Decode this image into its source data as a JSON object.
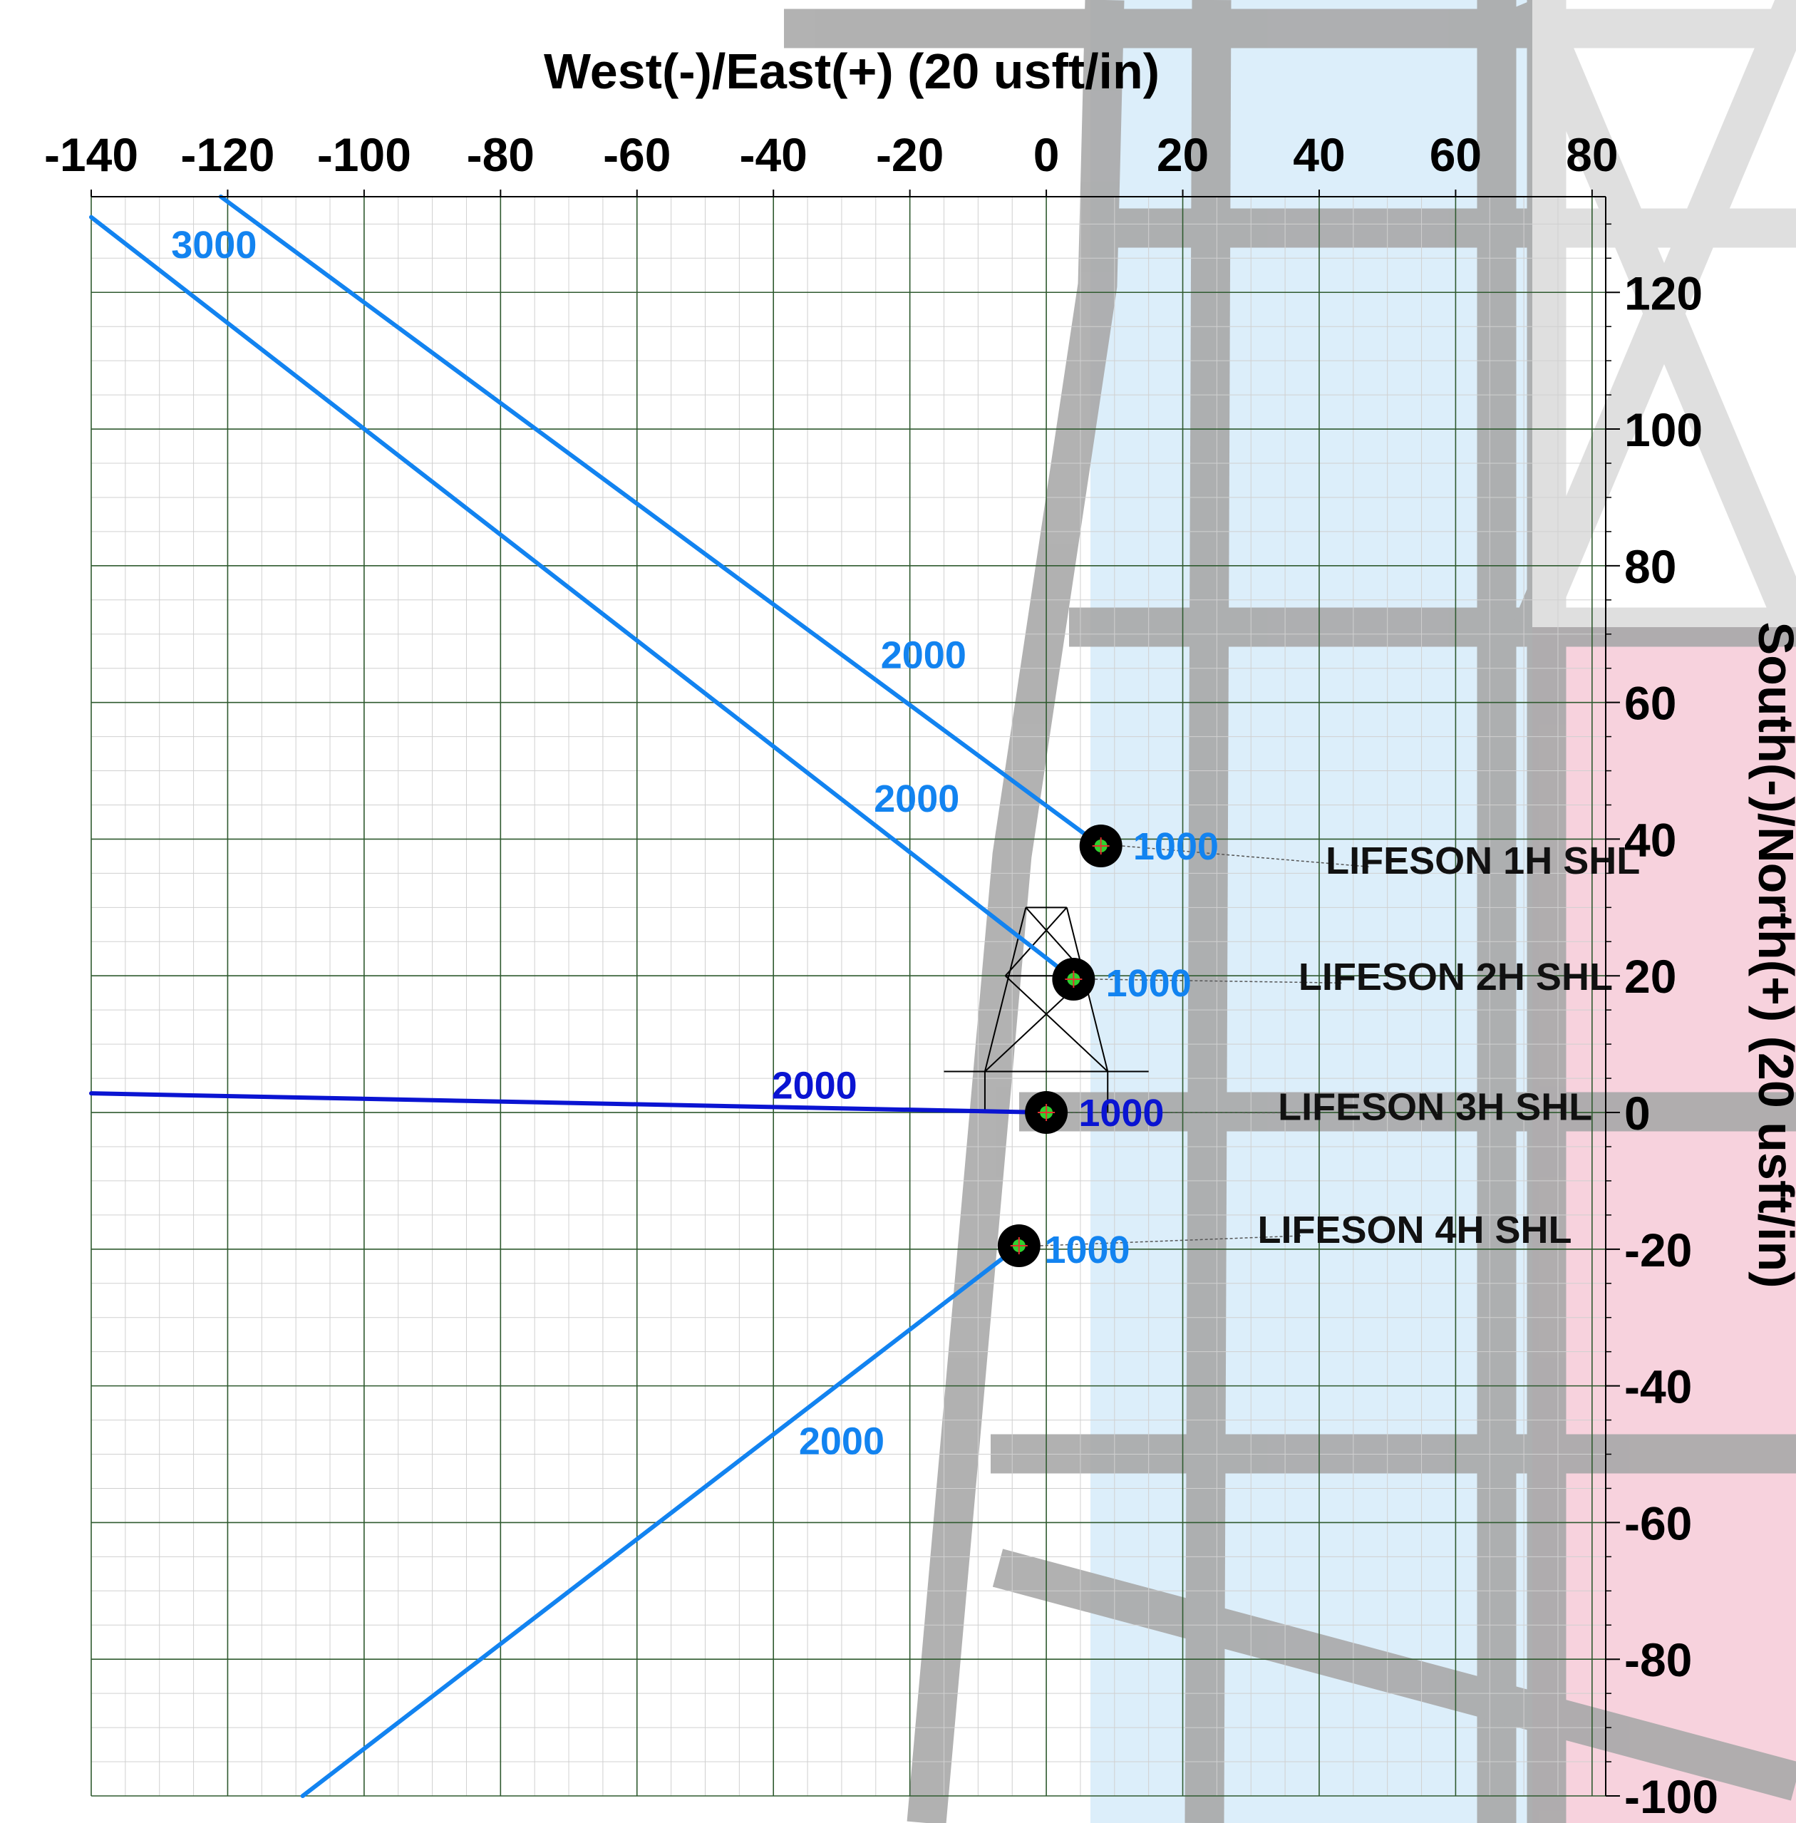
{
  "chart_data": {
    "type": "line",
    "title": "",
    "xlabel": "West(-)/East(+) (20 usft/in)",
    "ylabel": "South(-)/North(+) (20 usft/in)",
    "xlim": [
      -140,
      82
    ],
    "ylim": [
      -100,
      134
    ],
    "x_ticks": [
      -140,
      -120,
      -100,
      -80,
      -60,
      -40,
      -20,
      0,
      20,
      40,
      60,
      80
    ],
    "y_ticks": [
      120,
      100,
      80,
      60,
      40,
      20,
      0,
      -20,
      -40,
      -60,
      -80,
      -100
    ],
    "x_tick_labels": [
      "-140",
      "-120",
      "-100",
      "-80",
      "-60",
      "-40",
      "-20",
      "0",
      "20",
      "40",
      "60",
      "80"
    ],
    "y_tick_labels": [
      "120",
      "100",
      "80",
      "60",
      "40",
      "20",
      "0",
      "-20",
      "-40",
      "-60",
      "-80",
      "-100"
    ],
    "grid": true,
    "series": [
      {
        "name": "LIFESON 1H SHL",
        "color": "#1283f0",
        "points": [
          [
            8,
            39
          ],
          [
            -121,
            134
          ]
        ],
        "depth_labels": [
          {
            "text": "1000",
            "x": 19,
            "y": 39
          },
          {
            "text": "2000",
            "x": -18,
            "y": 67
          },
          {
            "text": "3000",
            "x": -122,
            "y": 127
          }
        ]
      },
      {
        "name": "LIFESON 2H SHL",
        "color": "#1283f0",
        "points": [
          [
            4,
            19.5
          ],
          [
            -140,
            131
          ]
        ],
        "depth_labels": [
          {
            "text": "1000",
            "x": 15,
            "y": 19
          },
          {
            "text": "2000",
            "x": -19,
            "y": 46
          }
        ]
      },
      {
        "name": "LIFESON 3H SHL",
        "color": "#0a14d2",
        "points": [
          [
            0,
            0
          ],
          [
            -140,
            2.8
          ]
        ],
        "depth_labels": [
          {
            "text": "1000",
            "x": 11,
            "y": 0
          },
          {
            "text": "2000",
            "x": -34,
            "y": 4
          }
        ]
      },
      {
        "name": "LIFESON 4H SHL",
        "color": "#1283f0",
        "points": [
          [
            -4,
            -19.5
          ],
          [
            -109,
            -100
          ]
        ],
        "depth_labels": [
          {
            "text": "1000",
            "x": 6,
            "y": -20
          },
          {
            "text": "2000",
            "x": -30,
            "y": -48
          }
        ]
      }
    ],
    "well_labels": [
      {
        "text": "LIFESON 1H SHL",
        "x": 64,
        "y": 37
      },
      {
        "text": "LIFESON 2H SHL",
        "x": 60,
        "y": 20
      },
      {
        "text": "LIFESON 3H SHL",
        "x": 57,
        "y": 1
      },
      {
        "text": "LIFESON 4H SHL",
        "x": 54,
        "y": -17
      }
    ]
  },
  "style": {
    "grid_color": "#2f5a2f",
    "minor_grid_color": "#d0d0d0",
    "well_marker_color": "#000000",
    "well_center_color": "#2fd12f"
  }
}
